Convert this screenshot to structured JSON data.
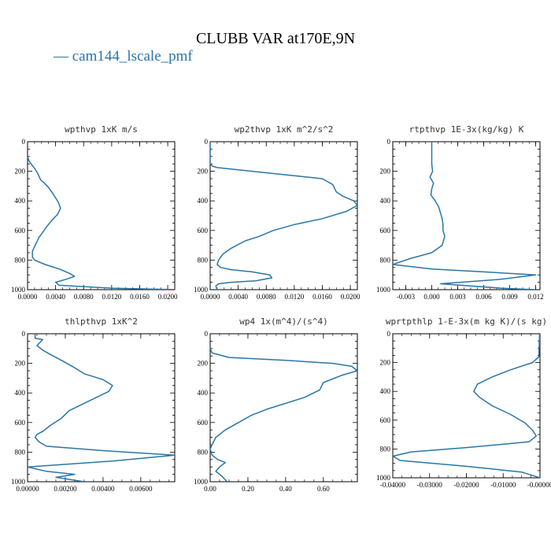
{
  "figure": {
    "title": "CLUBB VAR at170E,9N",
    "legend_label": "— cam144_lscale_pmf",
    "line_color": "#2a75a8"
  },
  "chart_data": [
    {
      "type": "line",
      "title": "wpthvp  1xK m/s",
      "xlim": [
        0,
        0.021
      ],
      "ylim": [
        1000,
        0
      ],
      "xticks": [
        "0.0000",
        "0.0040",
        "0.0080",
        "0.0120",
        "0.0160",
        "0.0200"
      ],
      "xtick_values": [
        0,
        0.004,
        0.008,
        0.012,
        0.016,
        0.02
      ],
      "yticks": [
        "0",
        "200",
        "400",
        "600",
        "800",
        "1000"
      ],
      "series": [
        {
          "x": [
            0.0,
            0.0002,
            0.0005,
            0.001,
            0.0014,
            0.0017,
            0.0019,
            0.0024,
            0.003,
            0.0036,
            0.004,
            0.0044,
            0.0047,
            0.0043,
            0.0035,
            0.0028,
            0.0022,
            0.0016,
            0.0011,
            0.0007,
            0.0007,
            0.001,
            0.0025,
            0.0045,
            0.006,
            0.0067,
            0.0055,
            0.004,
            0.0045,
            0.012,
            0.0215
          ],
          "y": [
            100,
            130,
            150,
            180,
            210,
            240,
            260,
            280,
            310,
            350,
            380,
            410,
            450,
            490,
            530,
            570,
            610,
            650,
            700,
            740,
            780,
            800,
            830,
            860,
            890,
            910,
            930,
            950,
            970,
            990,
            1000
          ]
        }
      ]
    },
    {
      "type": "line",
      "title": "wp2thvp  1xK m^2/s^2",
      "xlim": [
        0,
        0.021
      ],
      "ylim": [
        1000,
        0
      ],
      "xticks": [
        "0.0000",
        "0.0040",
        "0.0080",
        "0.0120",
        "0.0160",
        "0.0200"
      ],
      "xtick_values": [
        0,
        0.004,
        0.008,
        0.012,
        0.016,
        0.02
      ],
      "yticks": [
        "0",
        "200",
        "400",
        "600",
        "800",
        "1000"
      ],
      "series": [
        {
          "x": [
            0.0,
            0.0,
            0.0003,
            0.001,
            0.006,
            0.012,
            0.016,
            0.0175,
            0.018,
            0.019,
            0.0205,
            0.021,
            0.0195,
            0.016,
            0.012,
            0.009,
            0.007,
            0.005,
            0.003,
            0.0018,
            0.0012,
            0.001,
            0.0015,
            0.003,
            0.006,
            0.0085,
            0.0088,
            0.0065,
            0.003,
            0.0012,
            0.0008,
            0.001
          ],
          "y": [
            0,
            150,
            165,
            175,
            200,
            230,
            250,
            290,
            340,
            370,
            400,
            430,
            470,
            520,
            560,
            600,
            640,
            670,
            720,
            760,
            800,
            830,
            850,
            865,
            880,
            900,
            920,
            940,
            950,
            960,
            975,
            1000
          ]
        }
      ]
    },
    {
      "type": "line",
      "title": "rtpthvp  1E-3x(kg/kg) K",
      "xlim": [
        -0.0045,
        0.0125
      ],
      "ylim": [
        1000,
        0
      ],
      "xticks": [
        "-0.003",
        "0.000",
        "0.003",
        "0.006",
        "0.009",
        "0.012"
      ],
      "xtick_values": [
        -0.003,
        0,
        0.003,
        0.006,
        0.009,
        0.012
      ],
      "yticks": [
        "0",
        "200",
        "400",
        "600",
        "800",
        "1000"
      ],
      "series": [
        {
          "x": [
            0.0,
            0.0,
            0.0001,
            -0.0002,
            0.0002,
            0.0,
            -0.0001,
            0.0004,
            0.0008,
            0.001,
            0.0012,
            0.0013,
            0.0013,
            0.0015,
            0.0012,
            0.0,
            -0.0025,
            -0.0045,
            0.0,
            0.006,
            0.012,
            0.008,
            0.001,
            0.008,
            0.012
          ],
          "y": [
            0,
            150,
            200,
            240,
            280,
            320,
            360,
            400,
            440,
            480,
            520,
            560,
            600,
            640,
            700,
            750,
            790,
            830,
            860,
            880,
            900,
            930,
            960,
            990,
            1000
          ]
        }
      ]
    },
    {
      "type": "line",
      "title": "thlpthvp  1xK^2",
      "xlim": [
        0,
        0.0078
      ],
      "ylim": [
        1000,
        0
      ],
      "xticks": [
        "0.00000",
        "0.00200",
        "0.00400",
        "0.00600"
      ],
      "xtick_values": [
        0,
        0.002,
        0.004,
        0.006
      ],
      "yticks": [
        "0",
        "200",
        "400",
        "600",
        "800",
        "1000"
      ],
      "series": [
        {
          "x": [
            0.0004,
            0.0004,
            0.0008,
            0.0005,
            0.0008,
            0.0012,
            0.0018,
            0.0025,
            0.003,
            0.004,
            0.0045,
            0.0043,
            0.003,
            0.0022,
            0.0018,
            0.0012,
            0.0008,
            0.0005,
            0.0004,
            0.0006,
            0.001,
            0.004,
            0.0078,
            0.0045,
            0.0,
            0.001,
            0.0025,
            0.0015,
            0.0025,
            0.003
          ],
          "y": [
            0,
            30,
            40,
            80,
            110,
            140,
            180,
            230,
            270,
            310,
            350,
            390,
            470,
            520,
            570,
            620,
            660,
            680,
            700,
            730,
            760,
            790,
            820,
            860,
            900,
            930,
            950,
            970,
            990,
            1000
          ]
        }
      ]
    },
    {
      "type": "line",
      "title": "wp4  1x(m^4)/(s^4)",
      "xlim": [
        0,
        0.78
      ],
      "ylim": [
        1000,
        0
      ],
      "xticks": [
        "0.00",
        "0.20",
        "0.40",
        "0.60"
      ],
      "xtick_values": [
        0,
        0.2,
        0.4,
        0.6
      ],
      "yticks": [
        "0",
        "200",
        "400",
        "600",
        "800",
        "1000"
      ],
      "series": [
        {
          "x": [
            0.0,
            0.01,
            0.1,
            0.4,
            0.65,
            0.75,
            0.78,
            0.7,
            0.6,
            0.58,
            0.5,
            0.4,
            0.3,
            0.22,
            0.15,
            0.08,
            0.03,
            0.01,
            0.0,
            0.01,
            0.04,
            0.08,
            0.05,
            0.03,
            0.06,
            0.09
          ],
          "y": [
            100,
            130,
            160,
            180,
            200,
            220,
            250,
            280,
            330,
            380,
            430,
            470,
            510,
            550,
            600,
            650,
            700,
            750,
            780,
            820,
            850,
            870,
            900,
            930,
            960,
            1000
          ]
        }
      ]
    },
    {
      "type": "line",
      "title": "wprtpthlp  1-E-3x(m kg K)/(s kg)",
      "xlim": [
        -0.04,
        0.0
      ],
      "ylim": [
        1000,
        0
      ],
      "xticks": [
        "-0.04000",
        "-0.03000",
        "-0.02000",
        "-0.01000",
        "-0.00000"
      ],
      "xtick_values": [
        -0.04,
        -0.03,
        -0.02,
        -0.01,
        0
      ],
      "yticks": [
        "0",
        "200",
        "400",
        "600",
        "800",
        "1000"
      ],
      "series": [
        {
          "x": [
            -0.0001,
            -0.0003,
            -0.002,
            -0.008,
            -0.013,
            -0.017,
            -0.018,
            -0.0165,
            -0.013,
            -0.008,
            -0.004,
            -0.002,
            -0.001,
            -0.003,
            -0.02,
            -0.035,
            -0.04,
            -0.038,
            -0.02,
            -0.005,
            0.0
          ],
          "y": [
            0,
            160,
            200,
            250,
            300,
            350,
            400,
            440,
            500,
            560,
            620,
            670,
            710,
            750,
            790,
            820,
            850,
            880,
            920,
            960,
            1000
          ]
        }
      ]
    }
  ]
}
